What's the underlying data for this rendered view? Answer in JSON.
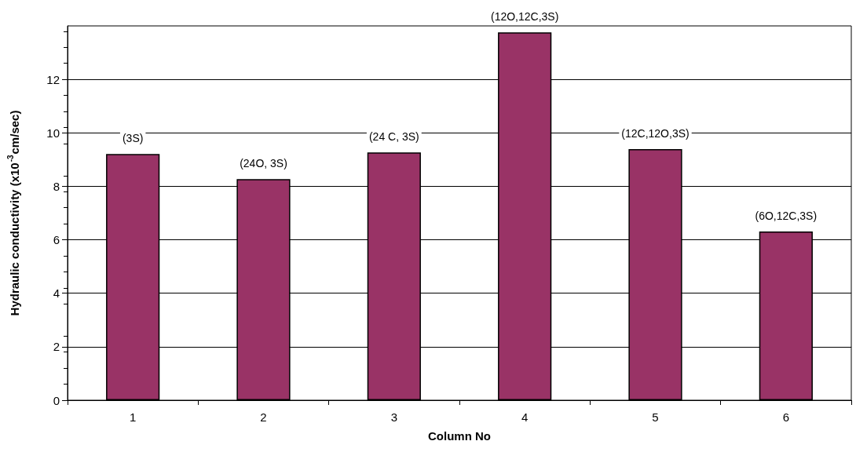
{
  "chart_data": {
    "type": "bar",
    "xlabel": "Column No",
    "ylabel": "Hydraulic conductivity (x10$^{-3}$cm/sec)",
    "categories": [
      "1",
      "2",
      "3",
      "4",
      "5",
      "6"
    ],
    "values": [
      9.21,
      8.27,
      9.27,
      13.76,
      9.39,
      6.31
    ],
    "color": "#993366",
    "ylim": [
      0,
      14
    ],
    "yticks": [
      0,
      2,
      4,
      6,
      8,
      10,
      12
    ],
    "grid": "y",
    "annotations": [
      "(3S)",
      "(24O, 3S)",
      "(24 C, 3S)",
      "(12O,12C,3S)",
      "(12C,12O,3S)",
      "(6O,12C,3S)"
    ]
  }
}
